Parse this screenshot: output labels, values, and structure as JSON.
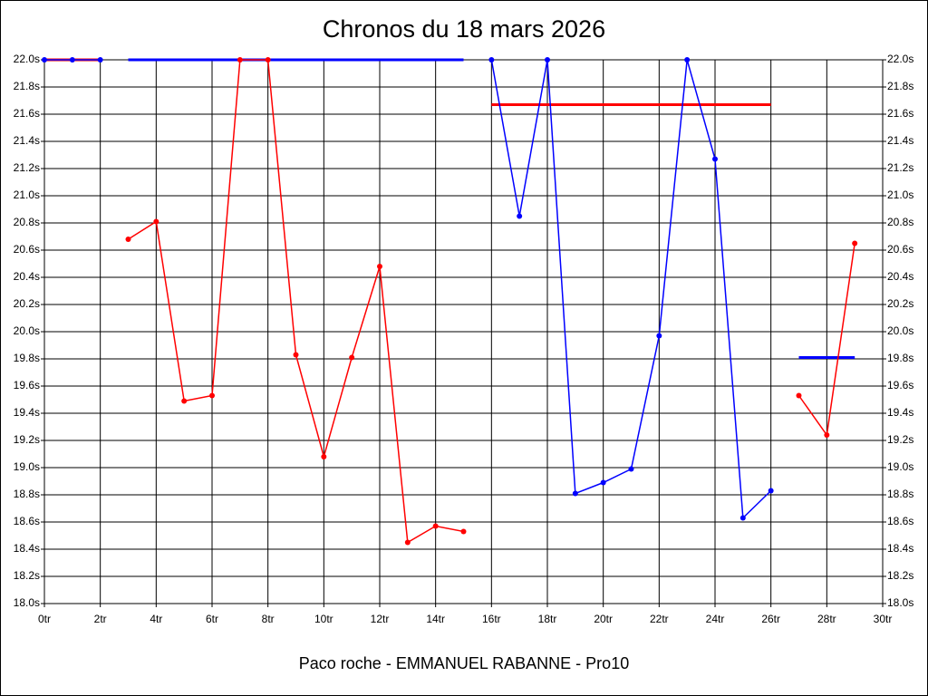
{
  "chart_data": {
    "type": "line",
    "title": "Chronos du 18 mars 2026",
    "x_label": "Paco roche - EMMANUEL RABANNE - Pro10",
    "xlim": [
      0,
      30
    ],
    "xticks": [
      {
        "value": 0,
        "label": "0tr"
      },
      {
        "value": 2,
        "label": "2tr"
      },
      {
        "value": 4,
        "label": "4tr"
      },
      {
        "value": 6,
        "label": "6tr"
      },
      {
        "value": 8,
        "label": "8tr"
      },
      {
        "value": 10,
        "label": "10tr"
      },
      {
        "value": 12,
        "label": "12tr"
      },
      {
        "value": 14,
        "label": "14tr"
      },
      {
        "value": 16,
        "label": "16tr"
      },
      {
        "value": 18,
        "label": "18tr"
      },
      {
        "value": 20,
        "label": "20tr"
      },
      {
        "value": 22,
        "label": "22tr"
      },
      {
        "value": 24,
        "label": "24tr"
      },
      {
        "value": 26,
        "label": "26tr"
      },
      {
        "value": 28,
        "label": "28tr"
      },
      {
        "value": 30,
        "label": "30tr"
      }
    ],
    "ylim": [
      18,
      22
    ],
    "yticks": [
      {
        "value": 18,
        "label": "18.0s"
      },
      {
        "value": 18.2,
        "label": "18.2s"
      },
      {
        "value": 18.4,
        "label": "18.4s"
      },
      {
        "value": 18.6,
        "label": "18.6s"
      },
      {
        "value": 18.8,
        "label": "18.8s"
      },
      {
        "value": 19,
        "label": "19.0s"
      },
      {
        "value": 19.2,
        "label": "19.2s"
      },
      {
        "value": 19.4,
        "label": "19.4s"
      },
      {
        "value": 19.6,
        "label": "19.6s"
      },
      {
        "value": 19.8,
        "label": "19.8s"
      },
      {
        "value": 20,
        "label": "20.0s"
      },
      {
        "value": 20.2,
        "label": "20.2s"
      },
      {
        "value": 20.4,
        "label": "20.4s"
      },
      {
        "value": 20.6,
        "label": "20.6s"
      },
      {
        "value": 20.8,
        "label": "20.8s"
      },
      {
        "value": 21,
        "label": "21.0s"
      },
      {
        "value": 21.2,
        "label": "21.2s"
      },
      {
        "value": 21.4,
        "label": "21.4s"
      },
      {
        "value": 21.6,
        "label": "21.6s"
      },
      {
        "value": 21.8,
        "label": "21.8s"
      },
      {
        "value": 22,
        "label": "22.0s"
      }
    ],
    "grid": true,
    "series": [
      {
        "color": "#0000ff",
        "x": [
          0,
          1,
          2
        ],
        "values": [
          22.0,
          22.0,
          22.0
        ]
      },
      {
        "color": "#ff0000",
        "x": [
          3,
          4,
          5,
          6,
          7,
          8,
          9,
          10,
          11,
          12,
          13,
          14,
          15
        ],
        "values": [
          20.68,
          20.81,
          19.49,
          19.53,
          22.0,
          22.0,
          19.83,
          19.08,
          19.81,
          20.48,
          18.45,
          18.57,
          18.53
        ]
      },
      {
        "color": "#0000ff",
        "x": [
          16,
          17,
          18,
          19,
          20,
          21,
          22,
          23,
          24,
          25,
          26
        ],
        "values": [
          22.0,
          20.85,
          22.0,
          18.81,
          18.89,
          18.99,
          19.97,
          22.0,
          21.27,
          18.63,
          18.83
        ]
      },
      {
        "color": "#ff0000",
        "x": [
          27,
          28,
          29
        ],
        "values": [
          19.53,
          19.24,
          20.65
        ]
      }
    ],
    "average_lines": [
      {
        "color": "#ff0000",
        "x": [
          0,
          2
        ],
        "value": 22.0
      },
      {
        "color": "#0000ff",
        "x": [
          3,
          15
        ],
        "value": 22.0
      },
      {
        "color": "#ff0000",
        "x": [
          16,
          26
        ],
        "value": 21.67
      },
      {
        "color": "#0000ff",
        "x": [
          27,
          29
        ],
        "value": 19.81
      }
    ]
  }
}
